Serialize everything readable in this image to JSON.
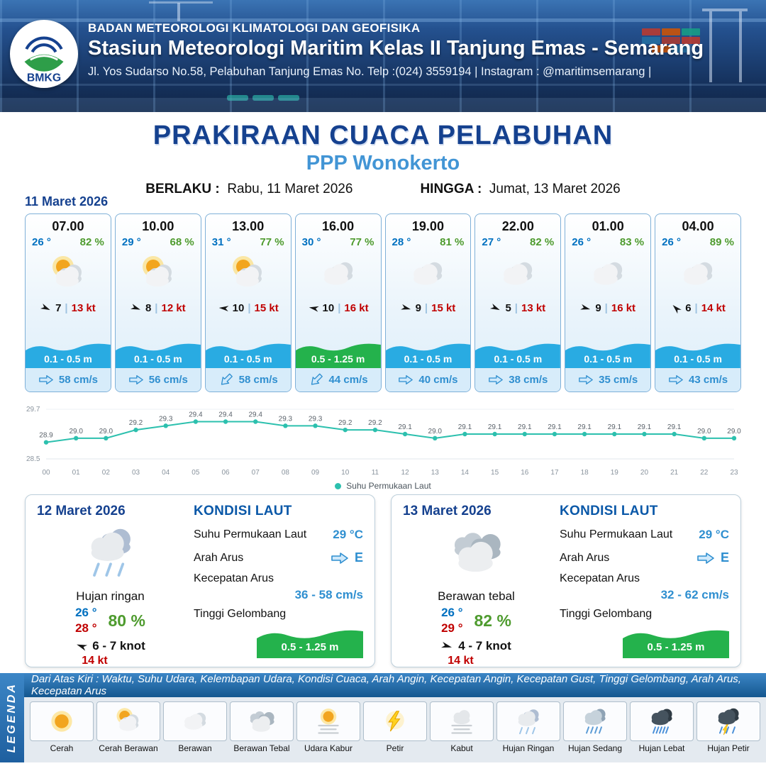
{
  "header": {
    "logo": "BMKG",
    "agency": "BADAN METEOROLOGI KLIMATOLOGI DAN GEOFISIKA",
    "station": "Stasiun Meteorologi Maritim Kelas II Tanjung Emas - Semarang",
    "address": "Jl. Yos Sudarso No.58, Pelabuhan Tanjung Emas No. Telp :(024) 3559194 | Instagram : @maritimsemarang |"
  },
  "title": {
    "main": "PRAKIRAAN CUACA PELABUHAN",
    "location": "PPP Wonokerto",
    "valid_from_label": "BERLAKU :",
    "valid_from": "Rabu, 11 Maret 2026",
    "valid_to_label": "HINGGA :",
    "valid_to": "Jumat, 13 Maret 2026"
  },
  "hourly": {
    "date": "11 Maret 2026",
    "cards": [
      {
        "time": "07.00",
        "temp": "26 °",
        "humidity": "82 %",
        "icon": "cerah-berawan",
        "wind_dir_deg": 25,
        "wind_speed": "7",
        "wind_gust": "13 kt",
        "wave": "0.1 - 0.5 m",
        "wave_level": "low",
        "current_dir_deg": 0,
        "current": "58 cm/s"
      },
      {
        "time": "10.00",
        "temp": "29 °",
        "humidity": "68 %",
        "icon": "cerah-berawan",
        "wind_dir_deg": 20,
        "wind_speed": "8",
        "wind_gust": "12 kt",
        "wave": "0.1 - 0.5 m",
        "wave_level": "low",
        "current_dir_deg": 0,
        "current": "56 cm/s"
      },
      {
        "time": "13.00",
        "temp": "31 °",
        "humidity": "77 %",
        "icon": "cerah-berawan",
        "wind_dir_deg": 185,
        "wind_speed": "10",
        "wind_gust": "15 kt",
        "wave": "0.1 - 0.5 m",
        "wave_level": "low",
        "current_dir_deg": 135,
        "current": "58 cm/s"
      },
      {
        "time": "16.00",
        "temp": "30 °",
        "humidity": "77 %",
        "icon": "berawan",
        "wind_dir_deg": 190,
        "wind_speed": "10",
        "wind_gust": "16 kt",
        "wave": "0.5 - 1.25 m",
        "wave_level": "moderate",
        "current_dir_deg": 135,
        "current": "44 cm/s"
      },
      {
        "time": "19.00",
        "temp": "28 °",
        "humidity": "81 %",
        "icon": "berawan",
        "wind_dir_deg": 15,
        "wind_speed": "9",
        "wind_gust": "15 kt",
        "wave": "0.1 - 0.5 m",
        "wave_level": "low",
        "current_dir_deg": 0,
        "current": "40 cm/s"
      },
      {
        "time": "22.00",
        "temp": "27 °",
        "humidity": "82 %",
        "icon": "berawan",
        "wind_dir_deg": 25,
        "wind_speed": "5",
        "wind_gust": "13 kt",
        "wave": "0.1 - 0.5 m",
        "wave_level": "low",
        "current_dir_deg": 0,
        "current": "38 cm/s"
      },
      {
        "time": "01.00",
        "temp": "26 °",
        "humidity": "83 %",
        "icon": "berawan",
        "wind_dir_deg": 15,
        "wind_speed": "9",
        "wind_gust": "16 kt",
        "wave": "0.1 - 0.5 m",
        "wave_level": "low",
        "current_dir_deg": 0,
        "current": "35 cm/s"
      },
      {
        "time": "04.00",
        "temp": "26 °",
        "humidity": "89 %",
        "icon": "berawan",
        "wind_dir_deg": 225,
        "wind_speed": "6",
        "wind_gust": "14 kt",
        "wave": "0.1 - 0.5 m",
        "wave_level": "low",
        "current_dir_deg": 0,
        "current": "43 cm/s"
      }
    ]
  },
  "chart_data": {
    "type": "line",
    "x": [
      "00",
      "01",
      "02",
      "03",
      "04",
      "05",
      "06",
      "07",
      "08",
      "09",
      "10",
      "11",
      "12",
      "13",
      "14",
      "15",
      "16",
      "17",
      "18",
      "19",
      "20",
      "21",
      "22",
      "23"
    ],
    "series": [
      {
        "name": "Suhu Permukaan Laut",
        "values": [
          28.9,
          29.0,
          29.0,
          29.2,
          29.3,
          29.4,
          29.4,
          29.4,
          29.3,
          29.3,
          29.2,
          29.2,
          29.1,
          29.0,
          29.1,
          29.1,
          29.1,
          29.1,
          29.1,
          29.1,
          29.1,
          29.1,
          29.0,
          29.0
        ]
      }
    ],
    "ylim": [
      28.5,
      29.7
    ],
    "grid": "minimal",
    "legend_position": "bottom",
    "line_color": "#2cc0ae"
  },
  "daily": [
    {
      "date": "12 Maret 2026",
      "icon": "hujan-ringan",
      "condition": "Hujan ringan",
      "temp_min": "26 °",
      "temp_max": "28 °",
      "humidity": "80 %",
      "wind_dir_deg": 200,
      "wind_knot": "6 - 7 knot",
      "wind_gust": "14 kt",
      "sea": {
        "title": "KONDISI LAUT",
        "sst_label": "Suhu Permukaan Laut",
        "sst": "29 °C",
        "current_dir_label": "Arah Arus",
        "current_dir_deg": 0,
        "current_dir": "E",
        "current_speed_label": "Kecepatan Arus",
        "current_speed": "36 - 58 cm/s",
        "wave_label": "Tinggi Gelombang",
        "wave": "0.5 - 1.25 m"
      }
    },
    {
      "date": "13 Maret 2026",
      "icon": "berawan-tebal",
      "condition": "Berawan tebal",
      "temp_min": "26 °",
      "temp_max": "29 °",
      "humidity": "82 %",
      "wind_dir_deg": 15,
      "wind_knot": "4 - 7 knot",
      "wind_gust": "14 kt",
      "sea": {
        "title": "KONDISI LAUT",
        "sst_label": "Suhu Permukaan Laut",
        "sst": "29 °C",
        "current_dir_label": "Arah Arus",
        "current_dir_deg": 0,
        "current_dir": "E",
        "current_speed_label": "Kecepatan Arus",
        "current_speed": "32 - 62 cm/s",
        "wave_label": "Tinggi Gelombang",
        "wave": "0.5 - 1.25 m"
      }
    }
  ],
  "legend": {
    "side_label": "LEGENDA",
    "note": "Dari Atas Kiri : Waktu, Suhu Udara, Kelembapan Udara, Kondisi Cuaca, Arah Angin, Kecepatan Angin, Kecepatan Gust, Tinggi Gelombang, Arah Arus, Kecepatan Arus",
    "items": [
      {
        "label": "Cerah",
        "icon": "cerah"
      },
      {
        "label": "Cerah Berawan",
        "icon": "cerah-berawan"
      },
      {
        "label": "Berawan",
        "icon": "berawan"
      },
      {
        "label": "Berawan Tebal",
        "icon": "berawan-tebal"
      },
      {
        "label": "Udara Kabur",
        "icon": "udara-kabur"
      },
      {
        "label": "Petir",
        "icon": "petir"
      },
      {
        "label": "Kabut",
        "icon": "kabut"
      },
      {
        "label": "Hujan Ringan",
        "icon": "hujan-ringan"
      },
      {
        "label": "Hujan Sedang",
        "icon": "hujan-sedang"
      },
      {
        "label": "Hujan Lebat",
        "icon": "hujan-lebat"
      },
      {
        "label": "Hujan Petir",
        "icon": "hujan-petir"
      }
    ]
  },
  "colors": {
    "navy": "#15418f",
    "location_blue": "#4295d5",
    "temp_blue": "#0070c0",
    "humidity_green": "#4e9b2e",
    "gust_red": "#c00000",
    "wave_low_blue": "#29abe2",
    "wave_moderate_green": "#24b24c",
    "current_blue": "#2f8fd0",
    "chart_teal": "#2cc0ae"
  }
}
